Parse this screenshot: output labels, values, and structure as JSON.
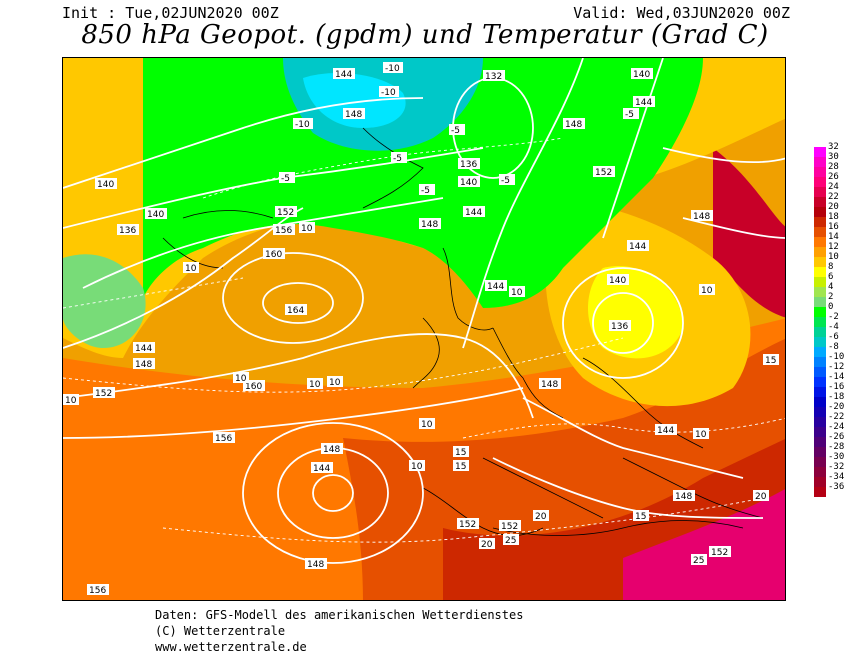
{
  "header": {
    "init": "Init : Tue,02JUN2020 00Z",
    "valid": "Valid: Wed,03JUN2020 00Z",
    "title": "850 hPa Geopot. (gpdm) und Temperatur (Grad C)"
  },
  "credits": {
    "line1": "Daten: GFS-Modell des amerikanischen Wetterdienstes",
    "line2": "(C) Wetterzentrale",
    "line3": "www.wetterzentrale.de"
  },
  "legend": {
    "levels": [
      "32",
      "30",
      "28",
      "26",
      "24",
      "22",
      "20",
      "18",
      "16",
      "14",
      "12",
      "10",
      "8",
      "6",
      "4",
      "2",
      "0",
      "-2",
      "-4",
      "-6",
      "-8",
      "-10",
      "-12",
      "-14",
      "-16",
      "-18",
      "-20",
      "-22",
      "-24",
      "-26",
      "-28",
      "-30",
      "-32",
      "-34",
      "-36"
    ],
    "colors": [
      "#ff00ff",
      "#ff00c8",
      "#ff00a0",
      "#ff0078",
      "#e60050",
      "#c80028",
      "#b4000a",
      "#cd2800",
      "#e65000",
      "#ff7800",
      "#ffa000",
      "#ffc800",
      "#ffff00",
      "#c8f000",
      "#a0e650",
      "#78dc78",
      "#00ff00",
      "#00e650",
      "#00d296",
      "#00c8c8",
      "#00aaff",
      "#0082ff",
      "#005aff",
      "#0032ff",
      "#0014e6",
      "#0000c8",
      "#1400b4",
      "#2800a0",
      "#3c008c",
      "#500078",
      "#640064",
      "#780050",
      "#8c003c",
      "#a00028",
      "#b40014"
    ]
  },
  "map": {
    "geopotential_labels": [
      "144",
      "132",
      "148",
      "140",
      "144",
      "-5",
      "136",
      "140",
      "144",
      "148",
      "152",
      "152",
      "156",
      "160",
      "164",
      "160",
      "156",
      "148",
      "144",
      "148",
      "152",
      "156",
      "140",
      "136",
      "144",
      "144",
      "148",
      "148",
      "148",
      "144",
      "136",
      "140",
      "152",
      "152",
      "148",
      "152",
      "158",
      "152",
      "152"
    ],
    "temperature_labels": [
      "-10",
      "-10",
      "-10",
      "-10",
      "-5",
      "-5",
      "-5",
      "-5",
      "-5",
      "-5",
      "-5",
      "-8",
      "0",
      "0",
      "0",
      "0",
      "0",
      "0",
      "5",
      "5",
      "5",
      "10",
      "10",
      "10",
      "10",
      "10",
      "10",
      "10",
      "10",
      "10",
      "10",
      "10",
      "15",
      "15",
      "15",
      "15",
      "20",
      "20",
      "20",
      "25",
      "25"
    ]
  }
}
